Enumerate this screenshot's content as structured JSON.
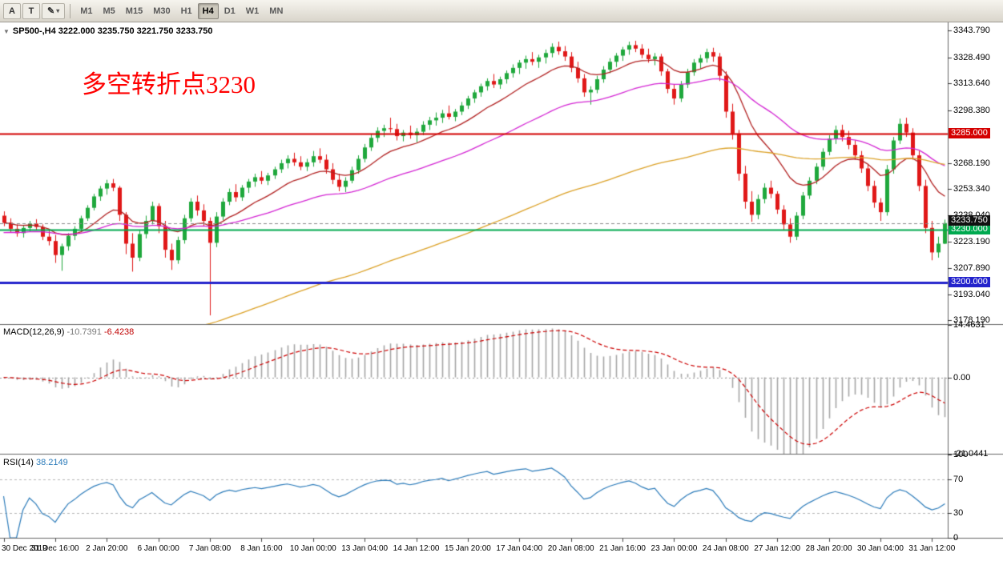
{
  "toolbar": {
    "buttons_left": [
      {
        "label": "A"
      },
      {
        "label": "T"
      },
      {
        "label": "✎",
        "caret": "▾"
      }
    ],
    "timeframes": [
      {
        "label": "M1"
      },
      {
        "label": "M5"
      },
      {
        "label": "M15"
      },
      {
        "label": "M30"
      },
      {
        "label": "H1"
      },
      {
        "label": "H4",
        "active": true
      },
      {
        "label": "D1"
      },
      {
        "label": "W1"
      },
      {
        "label": "MN"
      }
    ]
  },
  "chart_data": {
    "type": "candlestick",
    "symbol_title": "SP500-,H4 3222.000 3235.750 3221.750 3233.750",
    "annotation": {
      "text": "多空转折点3230",
      "color": "#ff0000"
    },
    "colors": {
      "up": "#1fa83c",
      "down": "#e01818"
    },
    "price_axis": {
      "min": 3176.0,
      "max": 3348.5,
      "ticks": [
        "3343.790",
        "3328.490",
        "3313.640",
        "3298.380",
        "3268.190",
        "3253.340",
        "3238.040",
        "3223.190",
        "3207.890",
        "3193.040",
        "3178.190"
      ]
    },
    "overlays": {
      "hlines": [
        {
          "value": 3285.0,
          "color": "#d40000",
          "badge": "3285.000",
          "width": 2
        },
        {
          "value": 3230.0,
          "color": "#00a94f",
          "badge": "3230.000",
          "width": 2
        },
        {
          "value": 3200.0,
          "color": "#2222cc",
          "badge": "3200.000",
          "width": 3
        }
      ],
      "current_price": {
        "value": 3233.75,
        "badge": "3233.750",
        "color": "#111111"
      },
      "moving_averages": [
        {
          "name": "ma-fast",
          "color": "#b22222",
          "period": 13,
          "seed": null
        },
        {
          "name": "ma-mid",
          "color": "#d426d4",
          "period": 40,
          "seed": 3228
        },
        {
          "name": "ma-slow",
          "color": "#dca228",
          "period": 110,
          "seed": 3130
        }
      ]
    },
    "indicators": {
      "macd": {
        "label": "MACD(12,26,9)",
        "value_main": "-10.7391",
        "value_signal": "-6.4238",
        "fast": 12,
        "slow": 26,
        "signal_period": 9,
        "axis": {
          "max": 14.4631,
          "min": -21.0441,
          "ticks": [
            "14.4631",
            "0.00",
            "-21.0441"
          ]
        },
        "colors": {
          "histogram": "#a6a6a6",
          "signal": "#cc0000"
        }
      },
      "rsi": {
        "label": "RSI(14)",
        "value": "38.2149",
        "period": 14,
        "color": "#2b7bba",
        "levels": [
          70,
          30
        ],
        "axis": {
          "max": 100,
          "min": 0,
          "ticks": [
            "100",
            "70",
            "30",
            "0"
          ]
        }
      }
    },
    "time_axis": {
      "labels": [
        {
          "text": "30 Dec 2019",
          "bar": 0
        },
        {
          "text": "31 Dec 16:00",
          "bar": 8
        },
        {
          "text": "2 Jan 20:00",
          "bar": 16
        },
        {
          "text": "6 Jan 00:00",
          "bar": 24
        },
        {
          "text": "7 Jan 08:00",
          "bar": 32
        },
        {
          "text": "8 Jan 16:00",
          "bar": 40
        },
        {
          "text": "10 Jan 00:00",
          "bar": 48
        },
        {
          "text": "13 Jan 04:00",
          "bar": 56
        },
        {
          "text": "14 Jan 12:00",
          "bar": 64
        },
        {
          "text": "15 Jan 20:00",
          "bar": 72
        },
        {
          "text": "17 Jan 04:00",
          "bar": 80
        },
        {
          "text": "20 Jan 08:00",
          "bar": 88
        },
        {
          "text": "21 Jan 16:00",
          "bar": 96
        },
        {
          "text": "23 Jan 00:00",
          "bar": 104
        },
        {
          "text": "24 Jan 08:00",
          "bar": 112
        },
        {
          "text": "27 Jan 12:00",
          "bar": 120
        },
        {
          "text": "28 Jan 20:00",
          "bar": 128
        },
        {
          "text": "30 Jan 04:00",
          "bar": 136
        },
        {
          "text": "31 Jan 12:00",
          "bar": 144
        }
      ]
    },
    "candles": [
      [
        3238.0,
        3240.5,
        3232.0,
        3234.0
      ],
      [
        3234.0,
        3236.5,
        3228.5,
        3230.5
      ],
      [
        3230.5,
        3233.0,
        3226.0,
        3228.0
      ],
      [
        3228.0,
        3232.5,
        3225.5,
        3231.0
      ],
      [
        3231.0,
        3235.0,
        3229.0,
        3233.5
      ],
      [
        3233.5,
        3236.0,
        3230.0,
        3231.5
      ],
      [
        3231.5,
        3233.0,
        3224.0,
        3226.0
      ],
      [
        3226.0,
        3229.5,
        3221.0,
        3223.5
      ],
      [
        3223.5,
        3227.0,
        3211.0,
        3215.5
      ],
      [
        3215.5,
        3222.0,
        3206.5,
        3220.5
      ],
      [
        3220.5,
        3228.0,
        3218.0,
        3226.5
      ],
      [
        3226.5,
        3232.0,
        3224.0,
        3230.5
      ],
      [
        3230.5,
        3238.0,
        3228.5,
        3236.5
      ],
      [
        3236.5,
        3244.0,
        3235.0,
        3242.5
      ],
      [
        3242.5,
        3250.5,
        3241.0,
        3249.0
      ],
      [
        3249.0,
        3255.0,
        3246.5,
        3253.5
      ],
      [
        3253.5,
        3258.5,
        3250.0,
        3256.5
      ],
      [
        3256.5,
        3259.0,
        3252.0,
        3254.0
      ],
      [
        3254.0,
        3255.0,
        3235.0,
        3238.5
      ],
      [
        3238.5,
        3240.0,
        3216.0,
        3222.0
      ],
      [
        3222.0,
        3228.0,
        3206.0,
        3214.0
      ],
      [
        3214.0,
        3230.0,
        3212.0,
        3227.5
      ],
      [
        3227.5,
        3238.0,
        3225.0,
        3235.0
      ],
      [
        3235.0,
        3246.0,
        3233.0,
        3243.5
      ],
      [
        3243.5,
        3245.0,
        3228.0,
        3232.0
      ],
      [
        3232.0,
        3235.0,
        3214.0,
        3218.5
      ],
      [
        3218.5,
        3222.0,
        3207.0,
        3212.5
      ],
      [
        3212.5,
        3226.0,
        3210.5,
        3224.0
      ],
      [
        3224.0,
        3238.5,
        3222.0,
        3236.5
      ],
      [
        3236.5,
        3248.0,
        3234.5,
        3246.0
      ],
      [
        3246.0,
        3249.5,
        3238.0,
        3241.0
      ],
      [
        3241.0,
        3244.5,
        3232.0,
        3235.0
      ],
      [
        3235.0,
        3237.0,
        3181.0,
        3222.5
      ],
      [
        3222.5,
        3240.0,
        3220.0,
        3237.5
      ],
      [
        3237.5,
        3248.0,
        3235.5,
        3246.0
      ],
      [
        3246.0,
        3253.5,
        3244.0,
        3251.5
      ],
      [
        3251.5,
        3256.0,
        3246.0,
        3248.5
      ],
      [
        3248.5,
        3255.5,
        3246.5,
        3254.0
      ],
      [
        3254.0,
        3259.0,
        3251.0,
        3257.5
      ],
      [
        3257.5,
        3262.0,
        3254.5,
        3260.0
      ],
      [
        3260.0,
        3263.5,
        3256.0,
        3258.0
      ],
      [
        3258.0,
        3262.5,
        3255.5,
        3261.0
      ],
      [
        3261.0,
        3266.0,
        3259.0,
        3264.5
      ],
      [
        3264.5,
        3270.0,
        3262.5,
        3268.0
      ],
      [
        3268.0,
        3272.5,
        3265.0,
        3270.5
      ],
      [
        3270.5,
        3274.0,
        3266.5,
        3268.5
      ],
      [
        3268.5,
        3272.0,
        3264.0,
        3266.0
      ],
      [
        3266.0,
        3270.5,
        3263.5,
        3268.5
      ],
      [
        3268.5,
        3275.0,
        3266.0,
        3272.0
      ],
      [
        3272.0,
        3276.5,
        3268.0,
        3270.0
      ],
      [
        3270.0,
        3273.0,
        3262.0,
        3264.5
      ],
      [
        3264.5,
        3268.0,
        3256.0,
        3258.5
      ],
      [
        3258.5,
        3262.0,
        3252.0,
        3254.5
      ],
      [
        3254.5,
        3260.0,
        3251.5,
        3258.0
      ],
      [
        3258.0,
        3266.0,
        3256.5,
        3264.0
      ],
      [
        3264.0,
        3272.5,
        3262.0,
        3270.5
      ],
      [
        3270.5,
        3279.0,
        3268.5,
        3277.0
      ],
      [
        3277.0,
        3284.5,
        3275.0,
        3282.5
      ],
      [
        3282.5,
        3288.5,
        3280.0,
        3286.5
      ],
      [
        3286.5,
        3290.0,
        3283.0,
        3288.0
      ],
      [
        3288.0,
        3294.0,
        3285.5,
        3287.5
      ],
      [
        3287.5,
        3290.5,
        3281.0,
        3283.5
      ],
      [
        3283.5,
        3287.0,
        3280.5,
        3285.5
      ],
      [
        3285.5,
        3289.5,
        3282.0,
        3284.0
      ],
      [
        3284.0,
        3288.0,
        3280.0,
        3286.0
      ],
      [
        3286.0,
        3292.0,
        3284.0,
        3290.0
      ],
      [
        3290.0,
        3294.5,
        3287.0,
        3292.5
      ],
      [
        3292.5,
        3297.0,
        3289.5,
        3294.0
      ],
      [
        3294.0,
        3298.5,
        3291.0,
        3296.5
      ],
      [
        3296.5,
        3301.0,
        3293.0,
        3294.5
      ],
      [
        3294.5,
        3299.0,
        3292.0,
        3297.5
      ],
      [
        3297.5,
        3303.0,
        3295.5,
        3301.0
      ],
      [
        3301.0,
        3306.5,
        3299.0,
        3305.0
      ],
      [
        3305.0,
        3310.0,
        3302.5,
        3308.5
      ],
      [
        3308.5,
        3313.5,
        3306.0,
        3312.0
      ],
      [
        3312.0,
        3316.5,
        3309.5,
        3315.0
      ],
      [
        3315.0,
        3319.0,
        3311.0,
        3313.0
      ],
      [
        3313.0,
        3317.5,
        3310.5,
        3316.0
      ],
      [
        3316.0,
        3321.0,
        3313.5,
        3319.5
      ],
      [
        3319.5,
        3324.5,
        3317.0,
        3322.5
      ],
      [
        3322.5,
        3327.0,
        3319.0,
        3325.5
      ],
      [
        3325.5,
        3329.5,
        3322.0,
        3327.5
      ],
      [
        3327.5,
        3331.5,
        3324.0,
        3326.0
      ],
      [
        3326.0,
        3330.0,
        3322.5,
        3328.5
      ],
      [
        3328.5,
        3333.0,
        3325.0,
        3331.0
      ],
      [
        3331.0,
        3336.5,
        3328.5,
        3334.5
      ],
      [
        3334.5,
        3337.5,
        3330.0,
        3332.0
      ],
      [
        3332.0,
        3335.0,
        3326.5,
        3329.0
      ],
      [
        3329.0,
        3331.5,
        3320.0,
        3322.5
      ],
      [
        3322.5,
        3326.0,
        3314.0,
        3316.5
      ],
      [
        3316.5,
        3319.0,
        3306.0,
        3308.5
      ],
      [
        3308.5,
        3312.0,
        3301.5,
        3310.0
      ],
      [
        3310.0,
        3318.0,
        3308.0,
        3316.0
      ],
      [
        3316.0,
        3323.5,
        3314.0,
        3321.5
      ],
      [
        3321.5,
        3328.0,
        3319.5,
        3326.0
      ],
      [
        3326.0,
        3331.0,
        3323.0,
        3329.5
      ],
      [
        3329.5,
        3334.5,
        3326.5,
        3333.0
      ],
      [
        3333.0,
        3337.5,
        3330.0,
        3335.5
      ],
      [
        3335.5,
        3338.0,
        3331.5,
        3333.5
      ],
      [
        3333.5,
        3336.0,
        3328.0,
        3330.0
      ],
      [
        3330.0,
        3333.5,
        3325.5,
        3327.5
      ],
      [
        3327.5,
        3331.0,
        3324.0,
        3329.0
      ],
      [
        3329.0,
        3330.5,
        3318.0,
        3320.5
      ],
      [
        3320.5,
        3322.0,
        3308.0,
        3310.5
      ],
      [
        3310.5,
        3313.0,
        3301.5,
        3305.0
      ],
      [
        3305.0,
        3315.0,
        3303.0,
        3313.0
      ],
      [
        3313.0,
        3322.0,
        3311.0,
        3320.0
      ],
      [
        3320.0,
        3327.5,
        3318.0,
        3325.5
      ],
      [
        3325.5,
        3330.0,
        3322.0,
        3328.0
      ],
      [
        3328.0,
        3333.5,
        3325.5,
        3331.5
      ],
      [
        3331.5,
        3334.0,
        3326.0,
        3329.0
      ],
      [
        3329.0,
        3331.0,
        3315.0,
        3318.0
      ],
      [
        3318.0,
        3320.5,
        3294.0,
        3297.5
      ],
      [
        3297.5,
        3302.0,
        3281.5,
        3285.0
      ],
      [
        3285.0,
        3287.0,
        3258.0,
        3262.0
      ],
      [
        3262.0,
        3266.5,
        3242.0,
        3246.0
      ],
      [
        3246.0,
        3252.0,
        3234.5,
        3238.5
      ],
      [
        3238.5,
        3250.0,
        3236.0,
        3247.5
      ],
      [
        3247.5,
        3256.5,
        3245.0,
        3254.0
      ],
      [
        3254.0,
        3258.0,
        3248.0,
        3250.5
      ],
      [
        3250.5,
        3252.0,
        3239.0,
        3241.5
      ],
      [
        3241.5,
        3244.0,
        3230.0,
        3233.0
      ],
      [
        3233.0,
        3236.5,
        3222.5,
        3226.0
      ],
      [
        3226.0,
        3240.0,
        3224.0,
        3238.0
      ],
      [
        3238.0,
        3251.5,
        3236.0,
        3249.5
      ],
      [
        3249.5,
        3260.0,
        3247.5,
        3258.0
      ],
      [
        3258.0,
        3268.0,
        3256.0,
        3266.0
      ],
      [
        3266.0,
        3276.5,
        3264.0,
        3274.5
      ],
      [
        3274.5,
        3284.0,
        3272.5,
        3282.0
      ],
      [
        3282.0,
        3289.5,
        3279.0,
        3287.0
      ],
      [
        3287.0,
        3290.0,
        3280.5,
        3283.0
      ],
      [
        3283.0,
        3286.5,
        3276.0,
        3278.5
      ],
      [
        3278.5,
        3281.0,
        3270.0,
        3272.5
      ],
      [
        3272.5,
        3275.0,
        3262.5,
        3265.0
      ],
      [
        3265.0,
        3267.5,
        3252.0,
        3255.0
      ],
      [
        3255.0,
        3258.0,
        3242.5,
        3245.5
      ],
      [
        3245.5,
        3248.0,
        3235.0,
        3240.0
      ],
      [
        3240.0,
        3267.0,
        3238.0,
        3264.5
      ],
      [
        3264.5,
        3283.0,
        3262.0,
        3281.0
      ],
      [
        3281.0,
        3293.5,
        3279.0,
        3290.5
      ],
      [
        3290.5,
        3294.0,
        3283.0,
        3285.5
      ],
      [
        3285.5,
        3288.0,
        3270.0,
        3272.5
      ],
      [
        3272.5,
        3275.0,
        3252.0,
        3255.0
      ],
      [
        3255.0,
        3258.5,
        3228.0,
        3231.0
      ],
      [
        3231.0,
        3235.0,
        3212.5,
        3217.0
      ],
      [
        3217.0,
        3226.0,
        3214.0,
        3222.0
      ],
      [
        3222.0,
        3235.75,
        3221.75,
        3233.75
      ]
    ]
  }
}
